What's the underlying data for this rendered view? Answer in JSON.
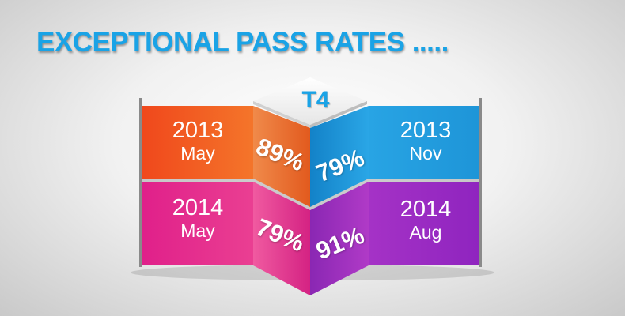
{
  "headline": "EXCEPTIONAL PASS RATES .....",
  "badge": "T4",
  "panels": [
    {
      "year": "2013",
      "month": "May",
      "pct": "89%",
      "color": "#f25a1e"
    },
    {
      "year": "2013",
      "month": "Nov",
      "pct": "79%",
      "color": "#1f9be0"
    },
    {
      "year": "2014",
      "month": "May",
      "pct": "79%",
      "color": "#e0238a"
    },
    {
      "year": "2014",
      "month": "Aug",
      "pct": "91%",
      "color": "#9b2cc7"
    }
  ]
}
